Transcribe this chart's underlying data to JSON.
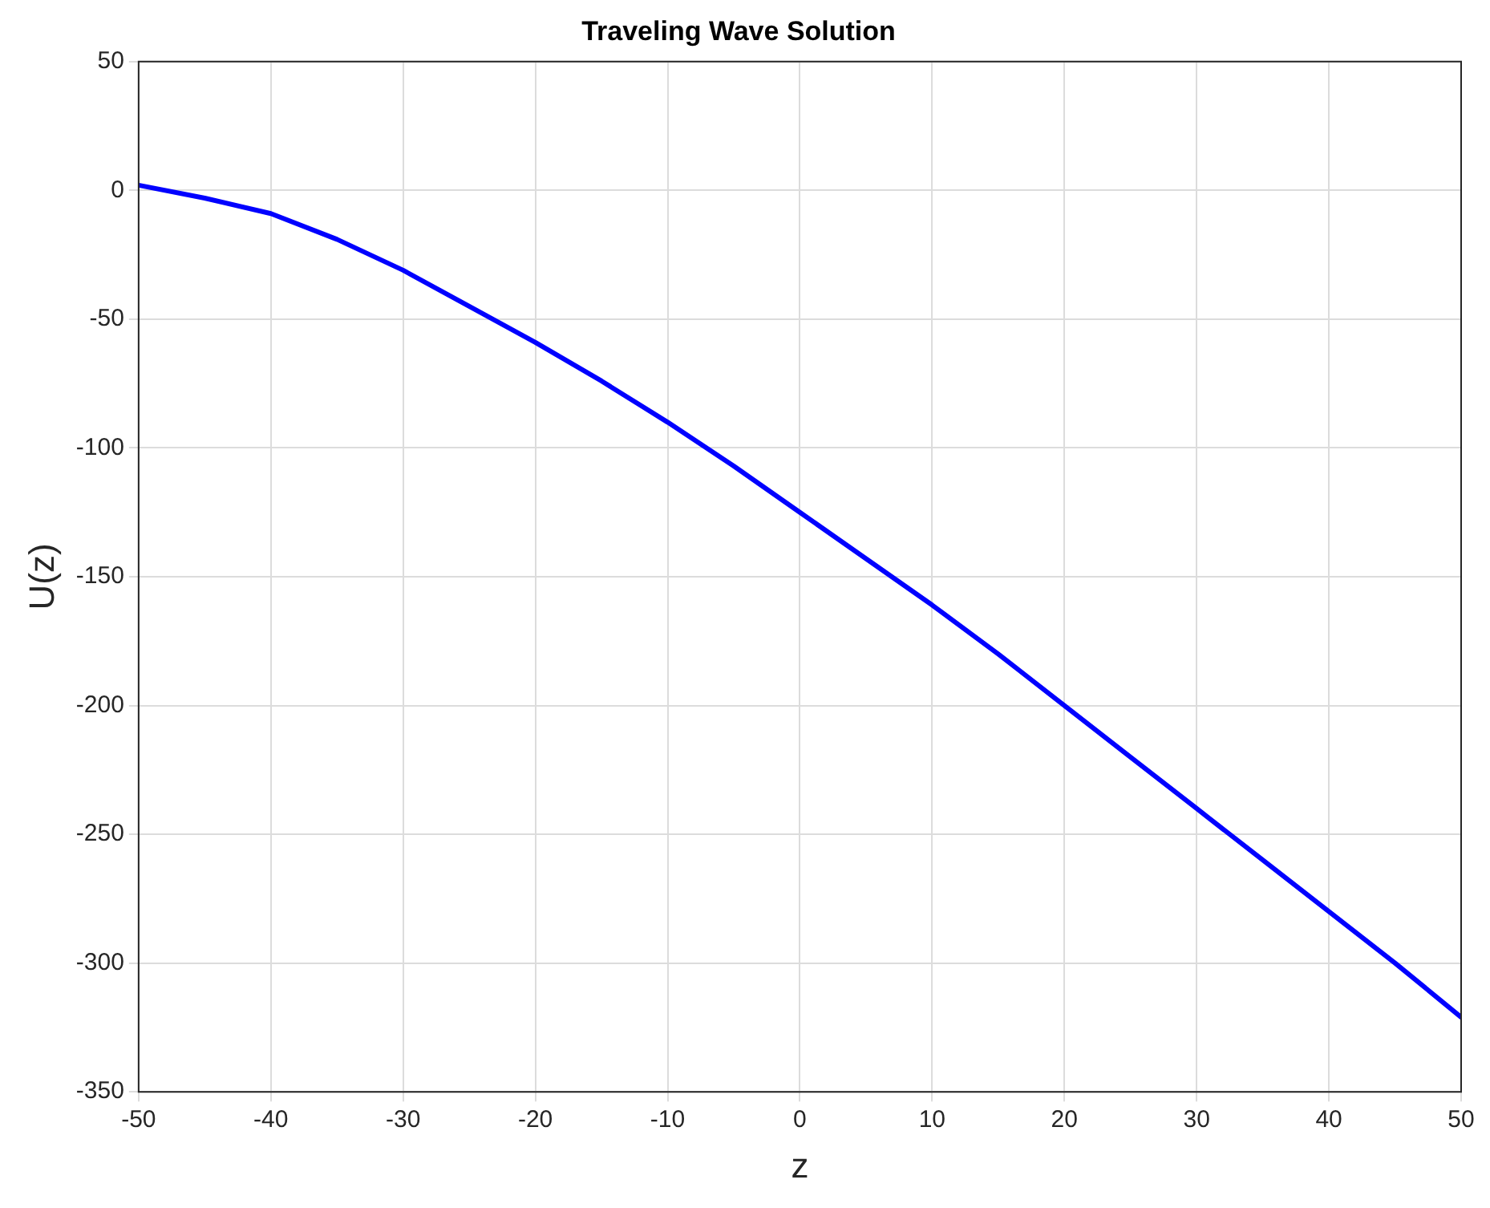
{
  "chart_data": {
    "type": "line",
    "title": "Traveling Wave Solution",
    "xlabel": "z",
    "ylabel": "U(z)",
    "x": [
      -50,
      -45,
      -40,
      -35,
      -30,
      -25,
      -20,
      -15,
      -10,
      -5,
      0,
      5,
      10,
      15,
      20,
      25,
      30,
      35,
      40,
      45,
      50
    ],
    "series": [
      {
        "color": "#0000ff",
        "values": [
          2,
          -3,
          -9,
          -19,
          -31,
          -45,
          -59,
          -74,
          -90,
          -107,
          -125,
          -143,
          -161,
          -180,
          -200,
          -220,
          -240,
          -260,
          -280,
          -300,
          -321
        ]
      }
    ],
    "xlim": [
      -50,
      50
    ],
    "xticks": [
      -50,
      -40,
      -30,
      -20,
      -10,
      0,
      10,
      20,
      30,
      40,
      50
    ],
    "ylim": [
      -350,
      50
    ],
    "yticks": [
      -350,
      -300,
      -250,
      -200,
      -150,
      -100,
      -50,
      0,
      50
    ],
    "grid": true,
    "legend": false,
    "marker": "none",
    "line_style": "solid"
  }
}
